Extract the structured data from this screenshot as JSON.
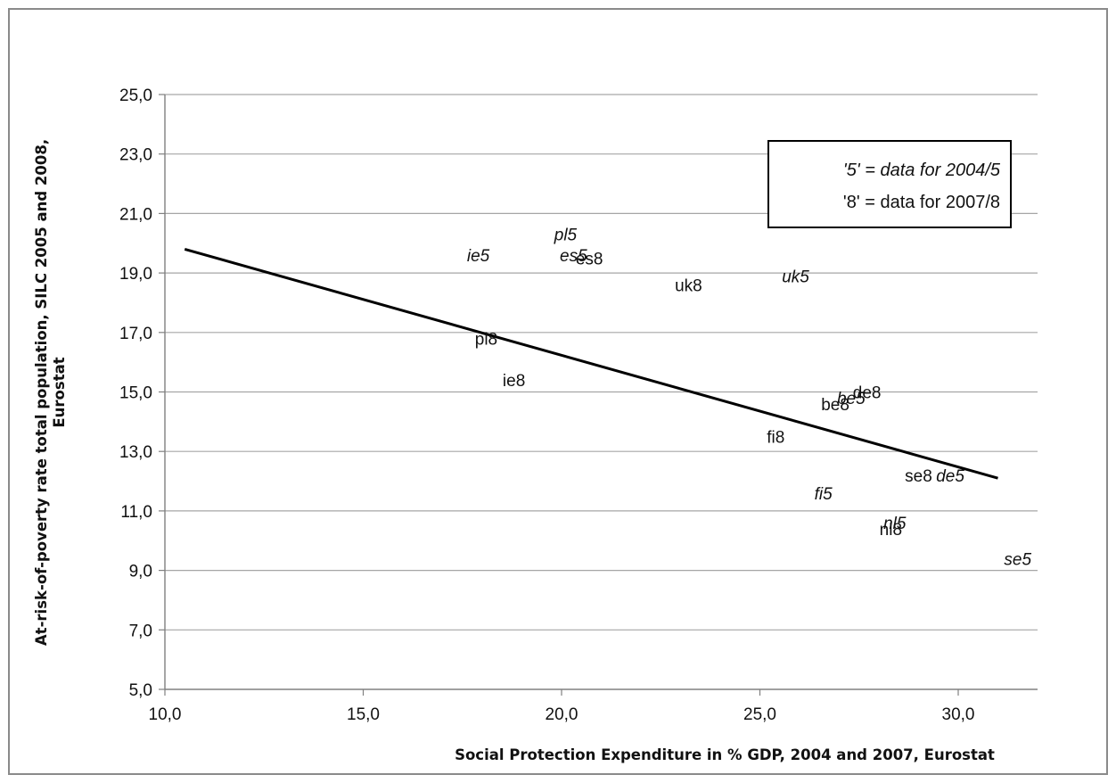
{
  "chart_data": {
    "type": "scatter",
    "xlabel": "Social Protection Expenditure in % GDP, 2004 and 2007, Eurostat",
    "ylabel": [
      "At-risk-of-poverty rate total population, SILC 2005 and 2008,",
      "Eurostat"
    ],
    "xlim": [
      10.0,
      32.0
    ],
    "ylim": [
      5.0,
      25.0
    ],
    "x_ticks": [
      "10,0",
      "15,0",
      "20,0",
      "25,0",
      "30,0"
    ],
    "y_ticks": [
      "5,0",
      "7,0",
      "9,0",
      "11,0",
      "13,0",
      "15,0",
      "17,0",
      "19,0",
      "21,0",
      "23,0",
      "25,0"
    ],
    "grid": "horizontal",
    "legend": {
      "position": "top-right",
      "lines": [
        "'5' = data for 2004/5",
        "'8' = data for 2007/8"
      ]
    },
    "points": [
      {
        "label": "pl5",
        "x": 20.1,
        "y": 20.3,
        "italic": true
      },
      {
        "label": "ie5",
        "x": 17.9,
        "y": 19.6,
        "italic": true
      },
      {
        "label": "es5",
        "x": 20.3,
        "y": 19.6,
        "italic": true
      },
      {
        "label": "es8",
        "x": 20.7,
        "y": 19.5,
        "italic": false
      },
      {
        "label": "uk8",
        "x": 23.2,
        "y": 18.6,
        "italic": false
      },
      {
        "label": "uk5",
        "x": 25.9,
        "y": 18.9,
        "italic": true
      },
      {
        "label": "pl8",
        "x": 18.1,
        "y": 16.8,
        "italic": false
      },
      {
        "label": "ie8",
        "x": 18.8,
        "y": 15.4,
        "italic": false
      },
      {
        "label": "de8",
        "x": 27.7,
        "y": 15.0,
        "italic": false
      },
      {
        "label": "be5",
        "x": 27.3,
        "y": 14.8,
        "italic": true
      },
      {
        "label": "be8",
        "x": 26.9,
        "y": 14.6,
        "italic": false
      },
      {
        "label": "fi8",
        "x": 25.4,
        "y": 13.5,
        "italic": false
      },
      {
        "label": "se8",
        "x": 29.0,
        "y": 12.2,
        "italic": false
      },
      {
        "label": "de5",
        "x": 29.8,
        "y": 12.2,
        "italic": true
      },
      {
        "label": "fi5",
        "x": 26.6,
        "y": 11.6,
        "italic": true
      },
      {
        "label": "nl5",
        "x": 28.4,
        "y": 10.6,
        "italic": true
      },
      {
        "label": "nl8",
        "x": 28.3,
        "y": 10.4,
        "italic": false
      },
      {
        "label": "se5",
        "x": 31.5,
        "y": 9.4,
        "italic": true
      }
    ],
    "trendline": {
      "x": [
        10.5,
        31.0
      ],
      "y": [
        19.8,
        12.1
      ]
    }
  }
}
